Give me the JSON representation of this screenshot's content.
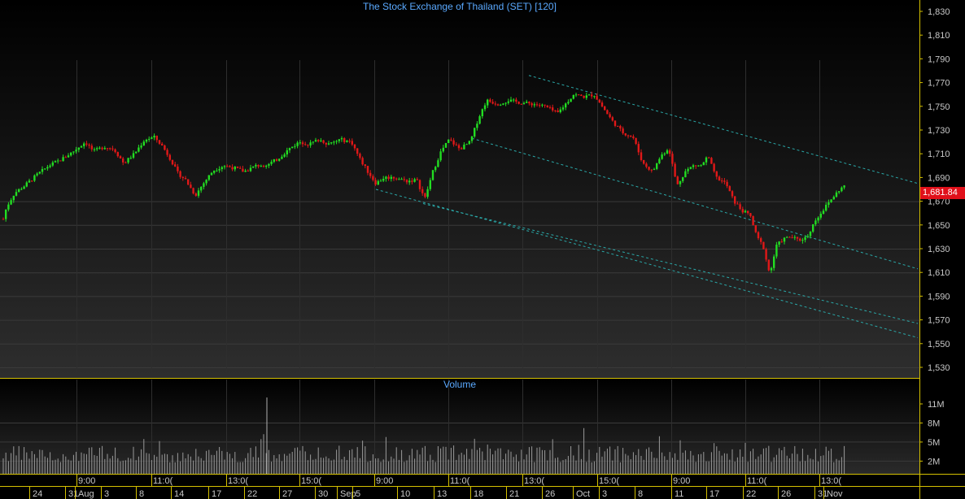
{
  "chart_data": {
    "type": "candlestick",
    "title": "The Stock Exchange of Thailand (SET) [120]",
    "last_price_label": "1,681.84",
    "last_price": 1681.84,
    "price_axis": {
      "ylim": [
        1520,
        1840
      ],
      "ticks": [
        1530,
        1550,
        1570,
        1590,
        1610,
        1630,
        1650,
        1670,
        1690,
        1710,
        1730,
        1750,
        1770,
        1790,
        1810,
        1830
      ],
      "tick_labels": [
        "1,530",
        "1,550",
        "1,570",
        "1,590",
        "1,610",
        "1,630",
        "1,650",
        "1,670",
        "1,690",
        "1,710",
        "1,730",
        "1,750",
        "1,770",
        "1,790",
        "1,810",
        "1,830"
      ]
    },
    "volume_panel": {
      "title": "Volume",
      "ticks": [
        2,
        5,
        8,
        11
      ],
      "tick_labels": [
        "2M",
        "5M",
        "8M",
        "11M"
      ],
      "ylim": [
        0,
        14
      ]
    },
    "time_labels": [
      "9:00",
      "11:0(",
      "13:0(",
      "15:0(",
      "9:00",
      "11:0(",
      "13:0(",
      "15:0(",
      "9:00",
      "11:0(",
      "13:0("
    ],
    "date_labels": [
      "24",
      "31",
      "Aug",
      "3",
      "8",
      "14",
      "17",
      "22",
      "27",
      "30",
      "Sep",
      "5",
      "10",
      "13",
      "18",
      "21",
      "26",
      "Oct",
      "3",
      "8",
      "11",
      "17",
      "22",
      "26",
      "31",
      "Nov"
    ],
    "price_path": [
      [
        0,
        1645
      ],
      [
        8,
        1665
      ],
      [
        18,
        1677
      ],
      [
        30,
        1683
      ],
      [
        45,
        1692
      ],
      [
        60,
        1700
      ],
      [
        75,
        1705
      ],
      [
        90,
        1712
      ],
      [
        105,
        1720
      ],
      [
        115,
        1712
      ],
      [
        128,
        1716
      ],
      [
        140,
        1714
      ],
      [
        152,
        1702
      ],
      [
        165,
        1710
      ],
      [
        178,
        1722
      ],
      [
        190,
        1724
      ],
      [
        200,
        1716
      ],
      [
        210,
        1705
      ],
      [
        218,
        1694
      ],
      [
        228,
        1688
      ],
      [
        240,
        1675
      ],
      [
        250,
        1685
      ],
      [
        262,
        1696
      ],
      [
        275,
        1700
      ],
      [
        288,
        1698
      ],
      [
        300,
        1695
      ],
      [
        315,
        1700
      ],
      [
        330,
        1701
      ],
      [
        342,
        1706
      ],
      [
        355,
        1714
      ],
      [
        368,
        1720
      ],
      [
        380,
        1718
      ],
      [
        392,
        1722
      ],
      [
        405,
        1718
      ],
      [
        418,
        1722
      ],
      [
        432,
        1720
      ],
      [
        442,
        1706
      ],
      [
        452,
        1695
      ],
      [
        462,
        1685
      ],
      [
        472,
        1690
      ],
      [
        485,
        1690
      ],
      [
        500,
        1687
      ],
      [
        512,
        1688
      ],
      [
        522,
        1672
      ],
      [
        532,
        1695
      ],
      [
        542,
        1712
      ],
      [
        552,
        1722
      ],
      [
        565,
        1714
      ],
      [
        578,
        1720
      ],
      [
        588,
        1740
      ],
      [
        598,
        1755
      ],
      [
        612,
        1752
      ],
      [
        625,
        1755
      ],
      [
        640,
        1753
      ],
      [
        655,
        1752
      ],
      [
        670,
        1750
      ],
      [
        685,
        1744
      ],
      [
        695,
        1752
      ],
      [
        705,
        1760
      ],
      [
        718,
        1758
      ],
      [
        730,
        1760
      ],
      [
        742,
        1748
      ],
      [
        752,
        1738
      ],
      [
        765,
        1728
      ],
      [
        778,
        1724
      ],
      [
        790,
        1702
      ],
      [
        802,
        1695
      ],
      [
        812,
        1708
      ],
      [
        822,
        1715
      ],
      [
        832,
        1683
      ],
      [
        842,
        1695
      ],
      [
        852,
        1700
      ],
      [
        862,
        1700
      ],
      [
        870,
        1708
      ],
      [
        880,
        1690
      ],
      [
        892,
        1685
      ],
      [
        902,
        1670
      ],
      [
        912,
        1662
      ],
      [
        922,
        1658
      ],
      [
        930,
        1640
      ],
      [
        938,
        1632
      ],
      [
        946,
        1608
      ],
      [
        954,
        1632
      ],
      [
        962,
        1638
      ],
      [
        972,
        1640
      ],
      [
        982,
        1637
      ],
      [
        992,
        1640
      ],
      [
        1002,
        1654
      ],
      [
        1012,
        1663
      ],
      [
        1022,
        1672
      ],
      [
        1032,
        1680
      ],
      [
        1040,
        1684
      ]
    ],
    "channel_lines": [
      {
        "from": [
          650,
          1776
        ],
        "to": [
          1128,
          1685
        ]
      },
      {
        "from": [
          580,
          1723
        ],
        "to": [
          1128,
          1613
        ]
      },
      {
        "from": [
          462,
          1680
        ],
        "to": [
          1128,
          1555
        ]
      },
      {
        "from": [
          520,
          1668
        ],
        "to": [
          1128,
          1567
        ]
      }
    ],
    "volume_markers": {
      "spike_x": 328,
      "spike_value": 12
    }
  }
}
